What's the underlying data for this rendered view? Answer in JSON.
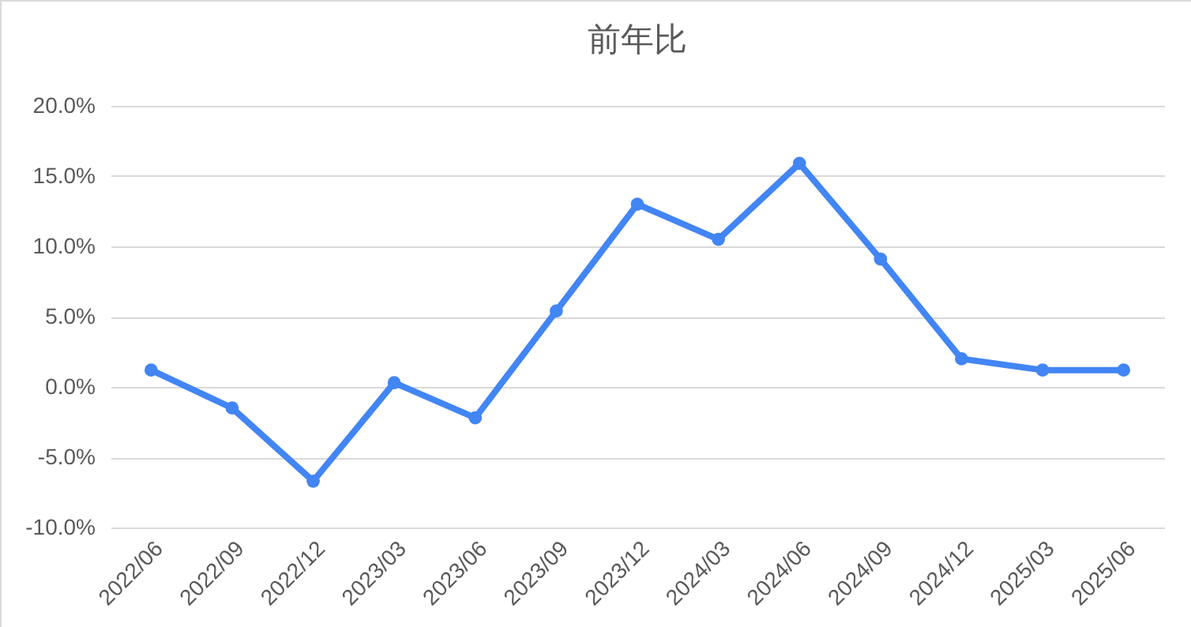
{
  "chart_data": {
    "type": "line",
    "title": "前年比",
    "categories": [
      "2022/06",
      "2022/09",
      "2022/12",
      "2023/03",
      "2023/06",
      "2023/09",
      "2023/12",
      "2024/03",
      "2024/06",
      "2024/09",
      "2024/12",
      "2025/03",
      "2025/06"
    ],
    "series": [
      {
        "color": "#4285f4",
        "values": [
          1.2,
          -1.5,
          -6.7,
          0.3,
          -2.2,
          5.4,
          13.0,
          10.5,
          15.9,
          9.1,
          2.0,
          1.2,
          1.2
        ]
      }
    ],
    "ylim": [
      -10,
      20
    ],
    "yticks": [
      {
        "value": -10,
        "label": "-10.0%"
      },
      {
        "value": -5,
        "label": "-5.0%"
      },
      {
        "value": 0,
        "label": "0.0%"
      },
      {
        "value": 5,
        "label": "5.0%"
      },
      {
        "value": 10,
        "label": "10.0%"
      },
      {
        "value": 15,
        "label": "15.0%"
      },
      {
        "value": 20,
        "label": "20.0%"
      }
    ],
    "grid": "y",
    "marker": "circle",
    "line_style": "solid"
  }
}
